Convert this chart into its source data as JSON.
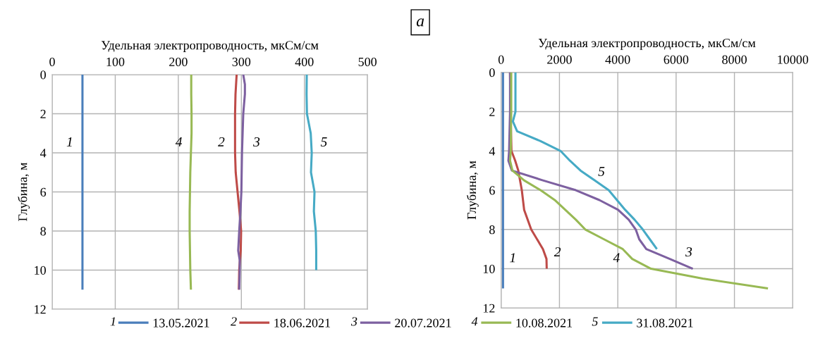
{
  "chart_data": [
    {
      "type": "line",
      "xlabel": "Удельная электропроводность, мкСм/см",
      "ylabel": "Глубина, м",
      "xlim": [
        0,
        500
      ],
      "xticks": [
        0,
        100,
        200,
        300,
        400,
        500
      ],
      "ylim": [
        12,
        0
      ],
      "yticks": [
        0,
        2,
        4,
        6,
        8,
        10,
        12
      ],
      "grid": true,
      "legend": "bottom",
      "marker": "none",
      "line_style": "solid",
      "annotations": [
        "а",
        {
          "text": "1",
          "x": 48,
          "y": 3.5
        },
        {
          "text": "2",
          "x": 290,
          "y": 3.5
        },
        {
          "text": "3",
          "x": 302.5,
          "y": 3.5
        },
        {
          "text": "4",
          "x": 221,
          "y": 3.5
        },
        {
          "text": "5",
          "x": 410.8,
          "y": 3.5
        }
      ],
      "series": [
        {
          "name": "13.05.2021",
          "color": "#4a7ebb",
          "x": [
            48,
            48,
            48,
            48,
            48,
            48,
            48,
            48,
            48,
            48,
            48,
            48
          ],
          "values": [
            0,
            1,
            2,
            3,
            4,
            5,
            6,
            7,
            8,
            9,
            10,
            11
          ]
        },
        {
          "name": "18.06.2021",
          "color": "#be4b48",
          "x": [
            292.5,
            290.7,
            290,
            290,
            290,
            291,
            294,
            297,
            299.6,
            299,
            296.6,
            296
          ],
          "values": [
            0,
            1,
            2,
            3,
            4,
            5,
            6,
            7,
            8,
            9,
            10,
            11
          ]
        },
        {
          "name": "20.07.2021",
          "color": "#7d60a0",
          "x": [
            303,
            305.6,
            305.6,
            303,
            302,
            301,
            300,
            298.5,
            296.6,
            295,
            297.4,
            297.4,
            296.6
          ],
          "values": [
            0,
            0.5,
            1,
            2,
            3,
            4,
            6,
            7,
            8,
            9,
            9.5,
            10,
            11
          ]
        },
        {
          "name": "10.08.2021",
          "color": "#98b954",
          "x": [
            220.5,
            220.5,
            221,
            221,
            220,
            219,
            218.5,
            218,
            218,
            219,
            220
          ],
          "values": [
            0,
            1,
            2,
            3,
            4,
            5,
            6,
            7,
            8,
            10,
            11
          ]
        },
        {
          "name": "31.08.2021",
          "color": "#46aac5",
          "x": [
            403.7,
            403.4,
            404,
            410,
            411.6,
            410.4,
            416,
            415,
            418,
            418.7,
            418.7
          ],
          "values": [
            0,
            1,
            2,
            3,
            4,
            5,
            6,
            7,
            8,
            9,
            10
          ]
        }
      ]
    },
    {
      "type": "line",
      "xlabel": "Удельная электропроводность, мкСм/см",
      "ylabel": "Глубина, м",
      "xlim": [
        0,
        10000
      ],
      "xticks": [
        0,
        2000,
        4000,
        6000,
        8000,
        10000
      ],
      "ylim": [
        12,
        0
      ],
      "yticks": [
        0,
        2,
        4,
        6,
        8,
        10,
        12
      ],
      "grid": true,
      "marker": "none",
      "line_style": "solid",
      "annotations": [
        {
          "text": "1",
          "x": 64,
          "y": 9.5
        },
        {
          "text": "2",
          "x": 1563,
          "y": 10
        },
        {
          "text": "3",
          "x": 6573,
          "y": 10
        },
        {
          "text": "4",
          "x": 4495,
          "y": 9.5
        },
        {
          "text": "5",
          "x": 3206,
          "y": 5.5
        }
      ],
      "series": [
        {
          "color": "#4a7ebb",
          "x": [
            64,
            64,
            64,
            64,
            64,
            64,
            64
          ],
          "values": [
            0,
            2,
            4,
            6,
            8,
            9.5,
            11
          ]
        },
        {
          "color": "#be4b48",
          "x": [
            306,
            322,
            354,
            483,
            588,
            709,
            789,
            1031,
            1434,
            1555,
            1563
          ],
          "values": [
            0,
            2,
            4,
            4.5,
            5,
            6,
            7,
            8,
            9,
            9.5,
            10
          ]
        },
        {
          "color": "#7d60a0",
          "x": [
            306,
            306,
            274,
            250,
            370,
            1434,
            2561,
            3367,
            4011,
            4374,
            4616,
            4736,
            4978,
            5783,
            6573
          ],
          "values": [
            0,
            2,
            4,
            4.5,
            5,
            5.5,
            6,
            6.5,
            7,
            7.5,
            8,
            8.5,
            9,
            9.5,
            10
          ]
        },
        {
          "color": "#98b954",
          "x": [
            346,
            346,
            330,
            306,
            387,
            789,
            1353,
            1837,
            2199,
            2561,
            2884,
            3528,
            4172,
            4495,
            5139,
            6911,
            9150
          ],
          "values": [
            0,
            2,
            4,
            4.5,
            5,
            5.5,
            6,
            6.5,
            7,
            7.5,
            8,
            8.5,
            9,
            9.5,
            10,
            10.5,
            11
          ]
        },
        {
          "color": "#46aac5",
          "x": [
            491,
            491,
            403,
            548,
            1353,
            2038,
            2360,
            2723,
            3206,
            3689,
            3971,
            4253,
            4575,
            4857,
            5099,
            5341
          ],
          "values": [
            0,
            2,
            2.5,
            3,
            3.5,
            4,
            4.5,
            5,
            5.5,
            6,
            6.5,
            7,
            7.5,
            8,
            8.5,
            9
          ]
        }
      ]
    }
  ]
}
